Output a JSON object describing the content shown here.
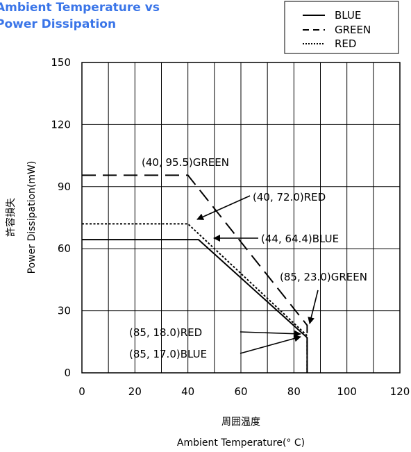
{
  "chart_data": {
    "type": "line",
    "title_lines": [
      "Ambient Temperature vs",
      "Power Dissipation"
    ],
    "xlabel_jp": "周囲温度",
    "xlabel": "Ambient Temperature(° C)",
    "ylabel_jp": "許容損失",
    "ylabel": "Power Dissipation(mW)",
    "xlim": [
      0,
      120
    ],
    "ylim": [
      0,
      150
    ],
    "xticks": [
      0,
      20,
      40,
      60,
      80,
      100,
      120
    ],
    "yticks": [
      0,
      30,
      60,
      90,
      120,
      150
    ],
    "grid": true,
    "legend_position": "top-right",
    "series": [
      {
        "name": "BLUE",
        "style": "solid",
        "points": [
          [
            0,
            64.4
          ],
          [
            44,
            64.4
          ],
          [
            85,
            17.0
          ],
          [
            85,
            0
          ]
        ]
      },
      {
        "name": "GREEN",
        "style": "dashed",
        "points": [
          [
            0,
            95.5
          ],
          [
            40,
            95.5
          ],
          [
            85,
            23.0
          ],
          [
            85,
            0
          ]
        ]
      },
      {
        "name": "RED",
        "style": "dotted",
        "points": [
          [
            0,
            72.0
          ],
          [
            40,
            72.0
          ],
          [
            85,
            18.0
          ],
          [
            85,
            0
          ]
        ]
      }
    ],
    "annotations": [
      {
        "text": "(40, 95.5)GREEN"
      },
      {
        "text": "(40, 72.0)RED"
      },
      {
        "text": "(44, 64.4)BLUE"
      },
      {
        "text": "(85, 23.0)GREEN"
      },
      {
        "text": "(85, 18.0)RED"
      },
      {
        "text": "(85, 17.0)BLUE"
      }
    ]
  }
}
